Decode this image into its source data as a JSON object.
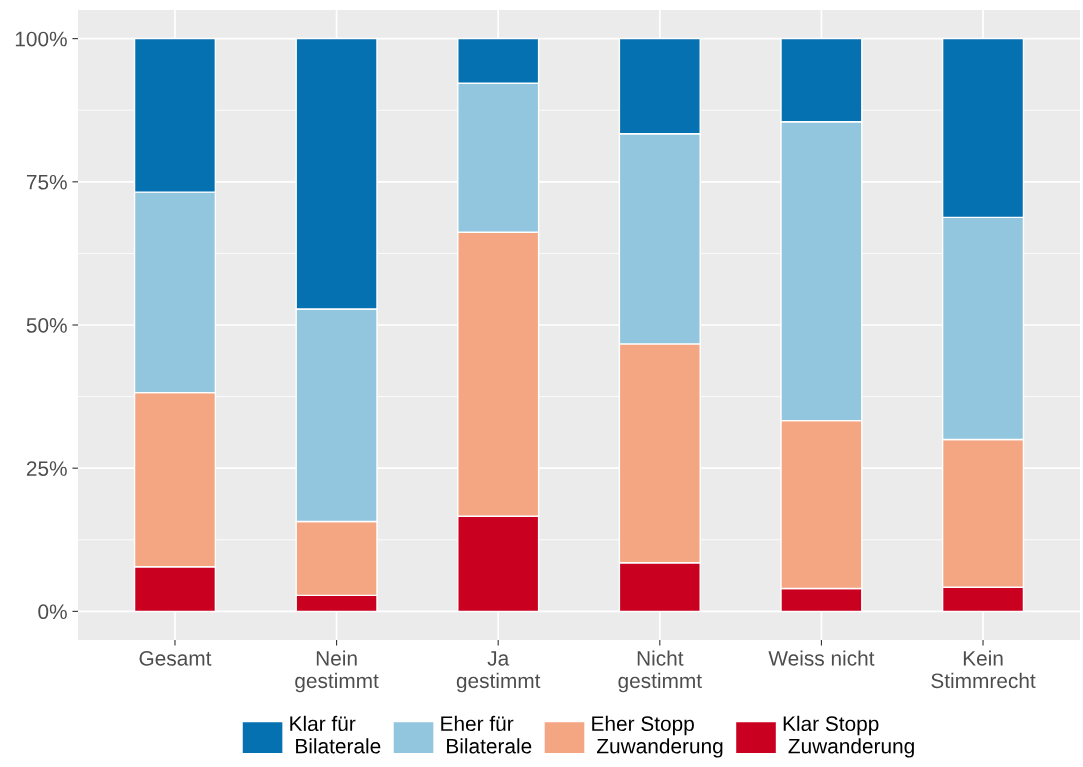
{
  "chart_data": {
    "type": "bar",
    "stacked": true,
    "categories": [
      "Gesamt",
      "Nein\ngestimmt",
      "Ja\ngestimmt",
      "Nicht\ngestimmt",
      "Weiss nicht",
      "Kein\nStimmrecht"
    ],
    "series": [
      {
        "name": "Klar Stopp\n Zuwanderung",
        "color": "#ca0020",
        "values": [
          7.8,
          2.8,
          16.6,
          8.5,
          4.0,
          4.2
        ]
      },
      {
        "name": "Eher Stopp\n Zuwanderung",
        "color": "#f4a582",
        "values": [
          30.4,
          12.9,
          49.6,
          38.2,
          29.3,
          25.8
        ]
      },
      {
        "name": "Eher für\n Bilaterale",
        "color": "#92c5de",
        "values": [
          35.0,
          37.1,
          26.0,
          36.7,
          52.2,
          38.8
        ]
      },
      {
        "name": "Klar für\n Bilaterale",
        "color": "#0571b0",
        "values": [
          26.8,
          47.2,
          7.8,
          16.6,
          14.5,
          31.2
        ]
      }
    ],
    "ylim": [
      -5,
      105
    ],
    "yticks": [
      {
        "value": 0,
        "label": "0%"
      },
      {
        "value": 25,
        "label": "25%"
      },
      {
        "value": 50,
        "label": "50%"
      },
      {
        "value": 75,
        "label": "75%"
      },
      {
        "value": 100,
        "label": "100%"
      }
    ],
    "grid": true,
    "legend": "bottom"
  }
}
